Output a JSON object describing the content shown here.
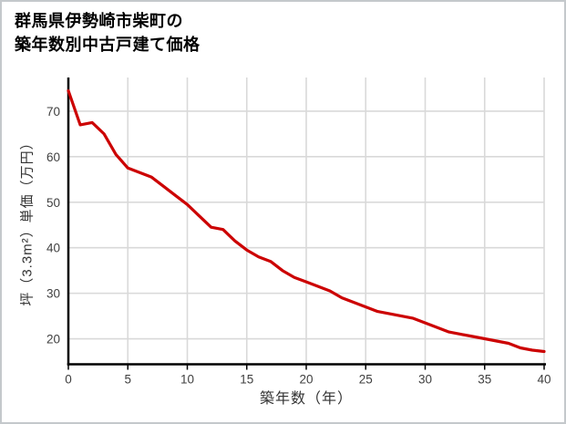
{
  "title": {
    "line1": "群馬県伊勢崎市柴町の",
    "line2": "築年数別中古戸建て価格"
  },
  "chart_data": {
    "type": "line",
    "title": "群馬県伊勢崎市柴町の築年数別中古戸建て価格",
    "xlabel": "築年数（年）",
    "ylabel": "坪（3.3m²）単価（万円）",
    "x": [
      0,
      1,
      2,
      3,
      4,
      5,
      6,
      7,
      8,
      9,
      10,
      11,
      12,
      13,
      14,
      15,
      16,
      17,
      18,
      19,
      20,
      21,
      22,
      23,
      24,
      25,
      26,
      27,
      28,
      29,
      30,
      31,
      32,
      33,
      34,
      35,
      36,
      37,
      38,
      39,
      40
    ],
    "series": [
      {
        "name": "坪単価（万円）",
        "values": [
          74.5,
          67,
          67.5,
          65,
          60.5,
          57.5,
          56.5,
          55.5,
          53.5,
          51.5,
          49.5,
          47,
          44.5,
          44,
          41.5,
          39.5,
          38,
          37,
          35,
          33.5,
          32.5,
          31.5,
          30.5,
          29,
          28,
          27,
          26,
          25.5,
          25,
          24.5,
          23.5,
          22.5,
          21.5,
          21,
          20.5,
          20,
          19.5,
          19,
          18,
          17.5,
          17.2
        ]
      }
    ],
    "xlim": [
      0,
      40
    ],
    "ylim": [
      14.4,
      77.4
    ],
    "xticks": [
      0,
      5,
      10,
      15,
      20,
      25,
      30,
      35,
      40
    ],
    "yticks": [
      20,
      30,
      40,
      50,
      60,
      70
    ],
    "grid": true,
    "legend": "none"
  },
  "colors": {
    "line": "#cc0000",
    "grid": "#d9d9d9",
    "axis": "#000000",
    "tick_label": "#404040",
    "axis_label": "#333333",
    "title": "#000000",
    "background": "#ffffff",
    "frame_border": "#c4c8cb"
  }
}
